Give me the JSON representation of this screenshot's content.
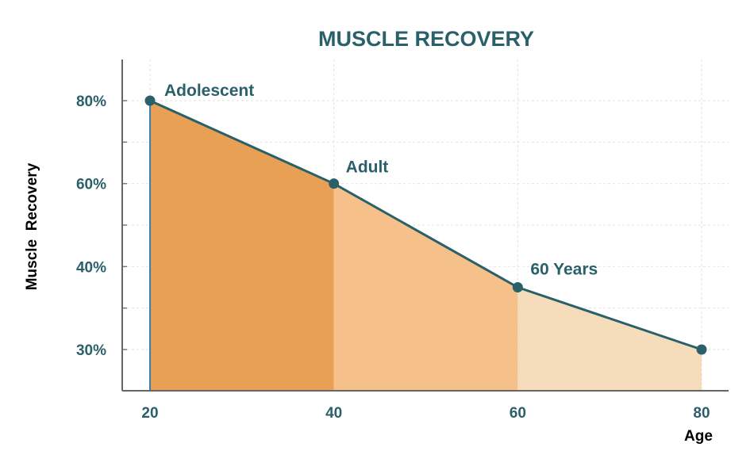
{
  "chart_data": {
    "type": "area",
    "title": "MUSCLE RECOVERY",
    "xlabel": "Age",
    "ylabel": "Muscle  Recovery",
    "x_ticks": [
      20,
      40,
      60,
      80
    ],
    "y_ticks": [
      30,
      40,
      60,
      80
    ],
    "y_tick_labels": [
      "30%",
      "40%",
      "60%",
      "80%"
    ],
    "y_scale_note": "tick labels evenly spaced (non-linear)",
    "grid": true,
    "points": [
      {
        "x": 20,
        "y": 80,
        "label": "Adolescent"
      },
      {
        "x": 40,
        "y": 60,
        "label": "Adult"
      },
      {
        "x": 60,
        "y": 37.5,
        "label": "60 Years"
      },
      {
        "x": 80,
        "y": 30,
        "label": ""
      }
    ],
    "segment_colors": [
      "#E8A055",
      "#F5C08A",
      "#F5DDBB"
    ],
    "line_color": "#2A6069",
    "text_color": "#2A6069"
  }
}
